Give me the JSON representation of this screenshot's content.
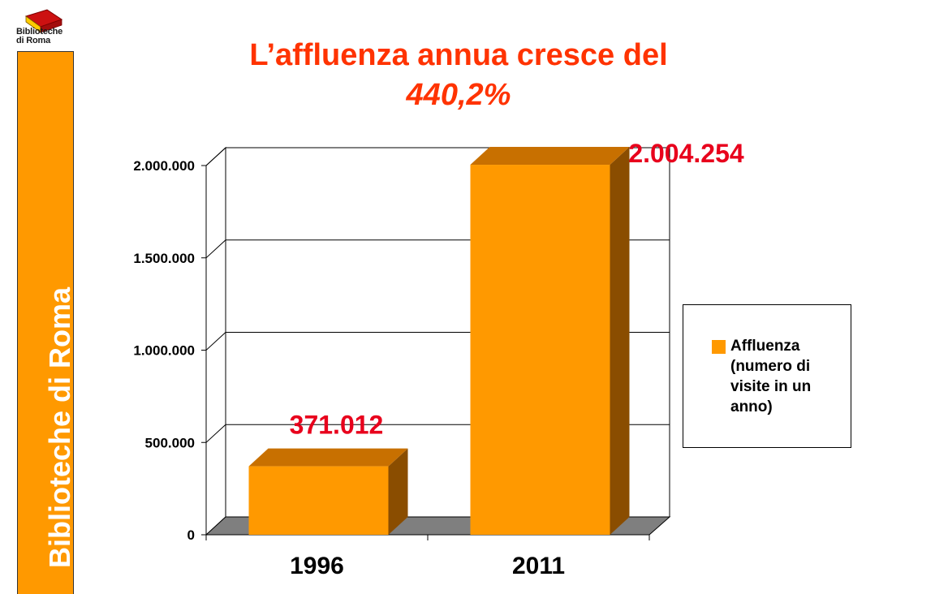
{
  "logo": {
    "text": "Biblioteche\ndi Roma",
    "icon": "book-icon",
    "colors": {
      "cover": "#cc1111",
      "pages": "#ffcc00"
    }
  },
  "side_band": {
    "text": "Biblioteche di Roma",
    "color": "#ff9900"
  },
  "title": {
    "line1": "L’affluenza annua cresce del",
    "line2": "440,2%",
    "color": "#ff3300"
  },
  "chart_data": {
    "type": "bar",
    "style": "3d",
    "categories": [
      "1996",
      "2011"
    ],
    "series": [
      {
        "name": "Affluenza (numero di visite in un anno)",
        "values": [
          371012,
          2004254
        ]
      }
    ],
    "data_labels": [
      "371.012",
      "2.004.254"
    ],
    "y_ticks": [
      "0",
      "500.000",
      "1.000.000",
      "1.500.000",
      "2.000.000"
    ],
    "ylim": [
      0,
      2000000
    ],
    "grid": true,
    "legend_position": "right",
    "colors": {
      "bar": "#ff9900",
      "bar_top": "#c87000",
      "bar_side": "#8a4d00",
      "floor": "#7f7f7f",
      "data_label": "#e8001c"
    }
  }
}
